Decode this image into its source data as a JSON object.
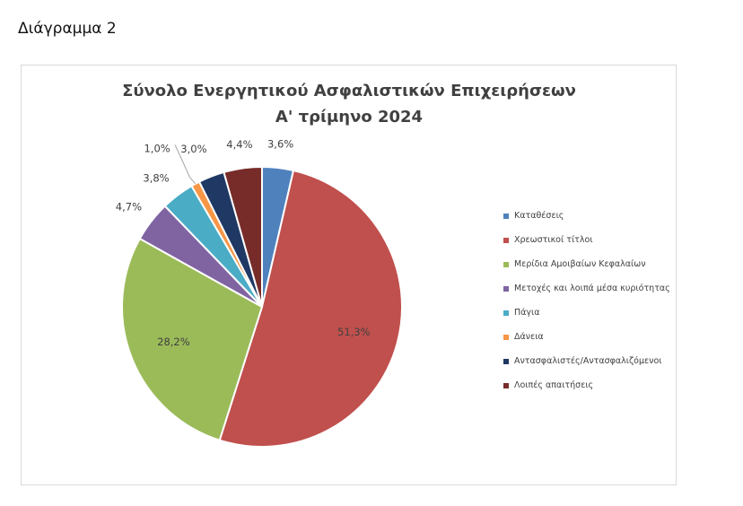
{
  "page": {
    "heading": "Διάγραμμα 2"
  },
  "chart_data": {
    "type": "pie",
    "title": "Σύνολο Ενεργητικού Ασφαλιστικών Επιχειρήσεων",
    "subtitle": "Α' τρίμηνο 2024",
    "legend_position": "right",
    "categories": [
      "Καταθέσεις",
      "Χρεωστικοί τίτλοι",
      "Μερίδια Αμοιβαίων Κεφαλαίων",
      "Μετοχές και λοιπά μέσα κυριότητας",
      "Πάγια",
      "Δάνεια",
      "Αντασφαλιστές/Αντασφαλιζόμενοι",
      "Λοιπές απαιτήσεις"
    ],
    "values": [
      3.6,
      51.3,
      28.2,
      4.7,
      3.8,
      1.0,
      3.0,
      4.4
    ],
    "value_labels": [
      "3,6%",
      "51,3%",
      "28,2%",
      "4,7%",
      "3,8%",
      "1,0%",
      "3,0%",
      "4,4%"
    ],
    "colors": [
      "#4f81bd",
      "#c0504d",
      "#9bbb59",
      "#8064a2",
      "#4bacc6",
      "#f79646",
      "#1f3864",
      "#772c2a"
    ]
  }
}
